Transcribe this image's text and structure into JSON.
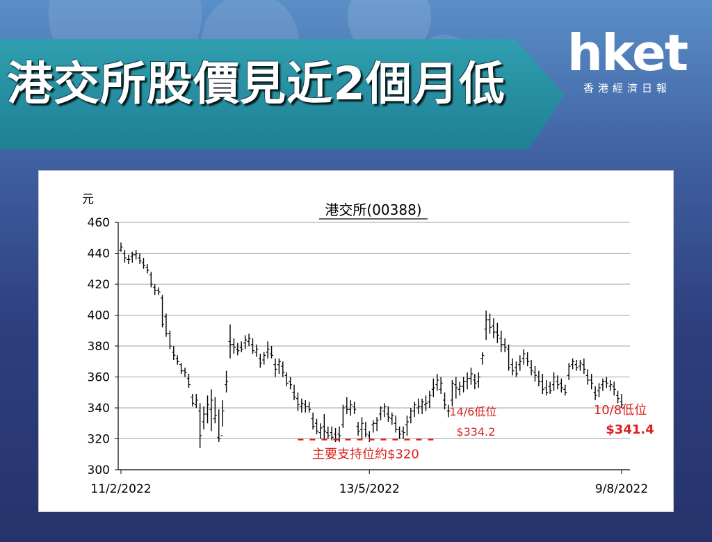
{
  "header": {
    "headline": "港交所股價見近2個月低",
    "brand_logo": "hket",
    "brand_sub": "香港經濟日報"
  },
  "colors": {
    "banner": "#1f8fa3",
    "price_bars": "#000000",
    "annotation": "#d9211f",
    "gridline": "#a0a0a0"
  },
  "chart_data": {
    "type": "ohlc",
    "title": "港交所(00388)",
    "ylabel": "元",
    "ylim": [
      300,
      460
    ],
    "yticks": [
      300,
      320,
      340,
      360,
      380,
      400,
      420,
      440,
      460
    ],
    "grid": true,
    "x_tick_labels": [
      "11/2/2022",
      "13/5/2022",
      "9/8/2022"
    ],
    "series": [
      {
        "values": [
          [
            442,
            447,
            441,
            444
          ],
          [
            440,
            442,
            434,
            437
          ],
          [
            436,
            439,
            433,
            436
          ],
          [
            438,
            441,
            434,
            439
          ],
          [
            439,
            442,
            436,
            440
          ],
          [
            437,
            440,
            433,
            435
          ],
          [
            434,
            437,
            430,
            432
          ],
          [
            431,
            433,
            427,
            429
          ],
          [
            426,
            428,
            418,
            420
          ],
          [
            418,
            420,
            413,
            416
          ],
          [
            416,
            418,
            413,
            415
          ],
          [
            411,
            413,
            392,
            394
          ],
          [
            399,
            401,
            386,
            388
          ],
          [
            388,
            390,
            378,
            380
          ],
          [
            376,
            380,
            371,
            374
          ],
          [
            372,
            374,
            368,
            370
          ],
          [
            368,
            369,
            362,
            364
          ],
          [
            364,
            366,
            360,
            363
          ],
          [
            359,
            362,
            353,
            355
          ],
          [
            347,
            349,
            341,
            343
          ],
          [
            342,
            349,
            340,
            345
          ],
          [
            338,
            343,
            314,
            322
          ],
          [
            331,
            341,
            326,
            336
          ],
          [
            336,
            348,
            330,
            342
          ],
          [
            339,
            352,
            325,
            345
          ],
          [
            333,
            347,
            330,
            335
          ],
          [
            321,
            339,
            318,
            320
          ],
          [
            322,
            345,
            328,
            338
          ],
          [
            355,
            364,
            350,
            357
          ],
          [
            383,
            394,
            372,
            381
          ],
          [
            381,
            385,
            375,
            379
          ],
          [
            378,
            382,
            374,
            377
          ],
          [
            379,
            383,
            376,
            378
          ],
          [
            382,
            387,
            378,
            384
          ],
          [
            383,
            388,
            380,
            385
          ],
          [
            381,
            385,
            375,
            377
          ],
          [
            376,
            381,
            373,
            378
          ],
          [
            372,
            375,
            366,
            369
          ],
          [
            371,
            376,
            368,
            374
          ],
          [
            376,
            383,
            372,
            378
          ],
          [
            375,
            380,
            372,
            374
          ],
          [
            368,
            372,
            360,
            365
          ],
          [
            368,
            372,
            362,
            370
          ],
          [
            367,
            370,
            360,
            363
          ],
          [
            361,
            363,
            354,
            356
          ],
          [
            357,
            360,
            352,
            355
          ],
          [
            350,
            355,
            345,
            347
          ],
          [
            346,
            350,
            338,
            342
          ],
          [
            341,
            346,
            337,
            343
          ],
          [
            342,
            345,
            337,
            341
          ],
          [
            341,
            344,
            337,
            339
          ],
          [
            333,
            337,
            326,
            328
          ],
          [
            330,
            333,
            323,
            325
          ],
          [
            324,
            330,
            320,
            327
          ],
          [
            328,
            336,
            320,
            325
          ],
          [
            324,
            328,
            320,
            322
          ],
          [
            324,
            328,
            319,
            321
          ],
          [
            323,
            327,
            318,
            320
          ],
          [
            323,
            328,
            318,
            322
          ],
          [
            329,
            342,
            327,
            340
          ],
          [
            341,
            347,
            336,
            339
          ],
          [
            339,
            345,
            335,
            342
          ],
          [
            341,
            344,
            336,
            339
          ],
          [
            328,
            331,
            322,
            325
          ],
          [
            326,
            334,
            320,
            330
          ],
          [
            326,
            331,
            321,
            323
          ],
          [
            322,
            325,
            318,
            320
          ],
          [
            329,
            332,
            324,
            330
          ],
          [
            330,
            334,
            325,
            332
          ],
          [
            336,
            341,
            332,
            340
          ],
          [
            338,
            343,
            334,
            341
          ],
          [
            336,
            341,
            331,
            334
          ],
          [
            333,
            337,
            329,
            335
          ],
          [
            330,
            335,
            324,
            326
          ],
          [
            326,
            328,
            320,
            323
          ],
          [
            325,
            328,
            320,
            324
          ],
          [
            329,
            335,
            322,
            331
          ],
          [
            334,
            340,
            330,
            338
          ],
          [
            338,
            344,
            334,
            342
          ],
          [
            340,
            346,
            336,
            341
          ],
          [
            341,
            346,
            336,
            344
          ],
          [
            342,
            348,
            338,
            343
          ],
          [
            344,
            351,
            340,
            348
          ],
          [
            352,
            359,
            347,
            353
          ],
          [
            355,
            362,
            351,
            358
          ],
          [
            352,
            360,
            349,
            356
          ],
          [
            345,
            350,
            339,
            342
          ],
          [
            338,
            342,
            334,
            338
          ],
          [
            345,
            358,
            341,
            356
          ],
          [
            355,
            360,
            346,
            353
          ],
          [
            352,
            357,
            348,
            354
          ],
          [
            354,
            360,
            350,
            357
          ],
          [
            357,
            363,
            352,
            359
          ],
          [
            359,
            366,
            355,
            362
          ],
          [
            358,
            362,
            352,
            356
          ],
          [
            357,
            363,
            353,
            360
          ],
          [
            372,
            376,
            368,
            374
          ],
          [
            391,
            403,
            384,
            397
          ],
          [
            397,
            401,
            388,
            392
          ],
          [
            393,
            398,
            385,
            389
          ],
          [
            389,
            395,
            382,
            387
          ],
          [
            385,
            390,
            376,
            381
          ],
          [
            381,
            385,
            376,
            379
          ],
          [
            378,
            381,
            364,
            366
          ],
          [
            368,
            372,
            361,
            364
          ],
          [
            366,
            370,
            360,
            362
          ],
          [
            368,
            374,
            364,
            370
          ],
          [
            372,
            378,
            368,
            375
          ],
          [
            372,
            376,
            367,
            370
          ],
          [
            366,
            371,
            361,
            364
          ],
          [
            363,
            367,
            357,
            361
          ],
          [
            360,
            364,
            354,
            357
          ],
          [
            357,
            362,
            349,
            352
          ],
          [
            353,
            358,
            348,
            350
          ],
          [
            354,
            357,
            349,
            351
          ],
          [
            355,
            363,
            351,
            360
          ],
          [
            357,
            361,
            352,
            355
          ],
          [
            356,
            359,
            350,
            353
          ],
          [
            352,
            355,
            348,
            350
          ],
          [
            361,
            369,
            358,
            367
          ],
          [
            368,
            372,
            365,
            370
          ],
          [
            368,
            371,
            364,
            366
          ],
          [
            367,
            371,
            364,
            369
          ],
          [
            368,
            372,
            362,
            365
          ],
          [
            361,
            365,
            355,
            358
          ],
          [
            358,
            362,
            352,
            356
          ],
          [
            350,
            354,
            345,
            348
          ],
          [
            351,
            356,
            347,
            353
          ],
          [
            355,
            359,
            351,
            357
          ],
          [
            357,
            360,
            353,
            356
          ],
          [
            354,
            358,
            351,
            355
          ],
          [
            354,
            357,
            348,
            352
          ],
          [
            348,
            351,
            343,
            346
          ],
          [
            344,
            349,
            340,
            342
          ]
        ]
      }
    ],
    "annotations": {
      "support_level": 320,
      "support_label": "主要支持位約$320",
      "low1_label": "14/6低位",
      "low1_price_label": "$334.2",
      "low1_value": 334.2,
      "low2_label": "10/8低位",
      "low2_price_label": "$341.4",
      "low2_value": 341.4
    }
  }
}
